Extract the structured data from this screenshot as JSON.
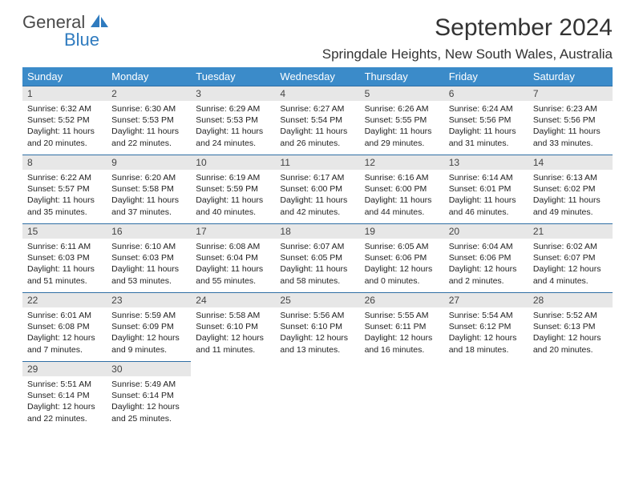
{
  "logo": {
    "word1": "General",
    "word2": "Blue"
  },
  "title": "September 2024",
  "location": "Springdale Heights, New South Wales, Australia",
  "colors": {
    "header_bg": "#3b8bc9",
    "header_text": "#ffffff",
    "row_border": "#2f6fa5",
    "daynum_bg": "#e7e7e7",
    "logo_blue": "#2f7bbf"
  },
  "day_headers": [
    "Sunday",
    "Monday",
    "Tuesday",
    "Wednesday",
    "Thursday",
    "Friday",
    "Saturday"
  ],
  "weeks": [
    [
      {
        "n": "1",
        "sr": "Sunrise: 6:32 AM",
        "ss": "Sunset: 5:52 PM",
        "d1": "Daylight: 11 hours",
        "d2": "and 20 minutes."
      },
      {
        "n": "2",
        "sr": "Sunrise: 6:30 AM",
        "ss": "Sunset: 5:53 PM",
        "d1": "Daylight: 11 hours",
        "d2": "and 22 minutes."
      },
      {
        "n": "3",
        "sr": "Sunrise: 6:29 AM",
        "ss": "Sunset: 5:53 PM",
        "d1": "Daylight: 11 hours",
        "d2": "and 24 minutes."
      },
      {
        "n": "4",
        "sr": "Sunrise: 6:27 AM",
        "ss": "Sunset: 5:54 PM",
        "d1": "Daylight: 11 hours",
        "d2": "and 26 minutes."
      },
      {
        "n": "5",
        "sr": "Sunrise: 6:26 AM",
        "ss": "Sunset: 5:55 PM",
        "d1": "Daylight: 11 hours",
        "d2": "and 29 minutes."
      },
      {
        "n": "6",
        "sr": "Sunrise: 6:24 AM",
        "ss": "Sunset: 5:56 PM",
        "d1": "Daylight: 11 hours",
        "d2": "and 31 minutes."
      },
      {
        "n": "7",
        "sr": "Sunrise: 6:23 AM",
        "ss": "Sunset: 5:56 PM",
        "d1": "Daylight: 11 hours",
        "d2": "and 33 minutes."
      }
    ],
    [
      {
        "n": "8",
        "sr": "Sunrise: 6:22 AM",
        "ss": "Sunset: 5:57 PM",
        "d1": "Daylight: 11 hours",
        "d2": "and 35 minutes."
      },
      {
        "n": "9",
        "sr": "Sunrise: 6:20 AM",
        "ss": "Sunset: 5:58 PM",
        "d1": "Daylight: 11 hours",
        "d2": "and 37 minutes."
      },
      {
        "n": "10",
        "sr": "Sunrise: 6:19 AM",
        "ss": "Sunset: 5:59 PM",
        "d1": "Daylight: 11 hours",
        "d2": "and 40 minutes."
      },
      {
        "n": "11",
        "sr": "Sunrise: 6:17 AM",
        "ss": "Sunset: 6:00 PM",
        "d1": "Daylight: 11 hours",
        "d2": "and 42 minutes."
      },
      {
        "n": "12",
        "sr": "Sunrise: 6:16 AM",
        "ss": "Sunset: 6:00 PM",
        "d1": "Daylight: 11 hours",
        "d2": "and 44 minutes."
      },
      {
        "n": "13",
        "sr": "Sunrise: 6:14 AM",
        "ss": "Sunset: 6:01 PM",
        "d1": "Daylight: 11 hours",
        "d2": "and 46 minutes."
      },
      {
        "n": "14",
        "sr": "Sunrise: 6:13 AM",
        "ss": "Sunset: 6:02 PM",
        "d1": "Daylight: 11 hours",
        "d2": "and 49 minutes."
      }
    ],
    [
      {
        "n": "15",
        "sr": "Sunrise: 6:11 AM",
        "ss": "Sunset: 6:03 PM",
        "d1": "Daylight: 11 hours",
        "d2": "and 51 minutes."
      },
      {
        "n": "16",
        "sr": "Sunrise: 6:10 AM",
        "ss": "Sunset: 6:03 PM",
        "d1": "Daylight: 11 hours",
        "d2": "and 53 minutes."
      },
      {
        "n": "17",
        "sr": "Sunrise: 6:08 AM",
        "ss": "Sunset: 6:04 PM",
        "d1": "Daylight: 11 hours",
        "d2": "and 55 minutes."
      },
      {
        "n": "18",
        "sr": "Sunrise: 6:07 AM",
        "ss": "Sunset: 6:05 PM",
        "d1": "Daylight: 11 hours",
        "d2": "and 58 minutes."
      },
      {
        "n": "19",
        "sr": "Sunrise: 6:05 AM",
        "ss": "Sunset: 6:06 PM",
        "d1": "Daylight: 12 hours",
        "d2": "and 0 minutes."
      },
      {
        "n": "20",
        "sr": "Sunrise: 6:04 AM",
        "ss": "Sunset: 6:06 PM",
        "d1": "Daylight: 12 hours",
        "d2": "and 2 minutes."
      },
      {
        "n": "21",
        "sr": "Sunrise: 6:02 AM",
        "ss": "Sunset: 6:07 PM",
        "d1": "Daylight: 12 hours",
        "d2": "and 4 minutes."
      }
    ],
    [
      {
        "n": "22",
        "sr": "Sunrise: 6:01 AM",
        "ss": "Sunset: 6:08 PM",
        "d1": "Daylight: 12 hours",
        "d2": "and 7 minutes."
      },
      {
        "n": "23",
        "sr": "Sunrise: 5:59 AM",
        "ss": "Sunset: 6:09 PM",
        "d1": "Daylight: 12 hours",
        "d2": "and 9 minutes."
      },
      {
        "n": "24",
        "sr": "Sunrise: 5:58 AM",
        "ss": "Sunset: 6:10 PM",
        "d1": "Daylight: 12 hours",
        "d2": "and 11 minutes."
      },
      {
        "n": "25",
        "sr": "Sunrise: 5:56 AM",
        "ss": "Sunset: 6:10 PM",
        "d1": "Daylight: 12 hours",
        "d2": "and 13 minutes."
      },
      {
        "n": "26",
        "sr": "Sunrise: 5:55 AM",
        "ss": "Sunset: 6:11 PM",
        "d1": "Daylight: 12 hours",
        "d2": "and 16 minutes."
      },
      {
        "n": "27",
        "sr": "Sunrise: 5:54 AM",
        "ss": "Sunset: 6:12 PM",
        "d1": "Daylight: 12 hours",
        "d2": "and 18 minutes."
      },
      {
        "n": "28",
        "sr": "Sunrise: 5:52 AM",
        "ss": "Sunset: 6:13 PM",
        "d1": "Daylight: 12 hours",
        "d2": "and 20 minutes."
      }
    ],
    [
      {
        "n": "29",
        "sr": "Sunrise: 5:51 AM",
        "ss": "Sunset: 6:14 PM",
        "d1": "Daylight: 12 hours",
        "d2": "and 22 minutes."
      },
      {
        "n": "30",
        "sr": "Sunrise: 5:49 AM",
        "ss": "Sunset: 6:14 PM",
        "d1": "Daylight: 12 hours",
        "d2": "and 25 minutes."
      },
      {
        "empty": true
      },
      {
        "empty": true
      },
      {
        "empty": true
      },
      {
        "empty": true
      },
      {
        "empty": true
      }
    ]
  ]
}
